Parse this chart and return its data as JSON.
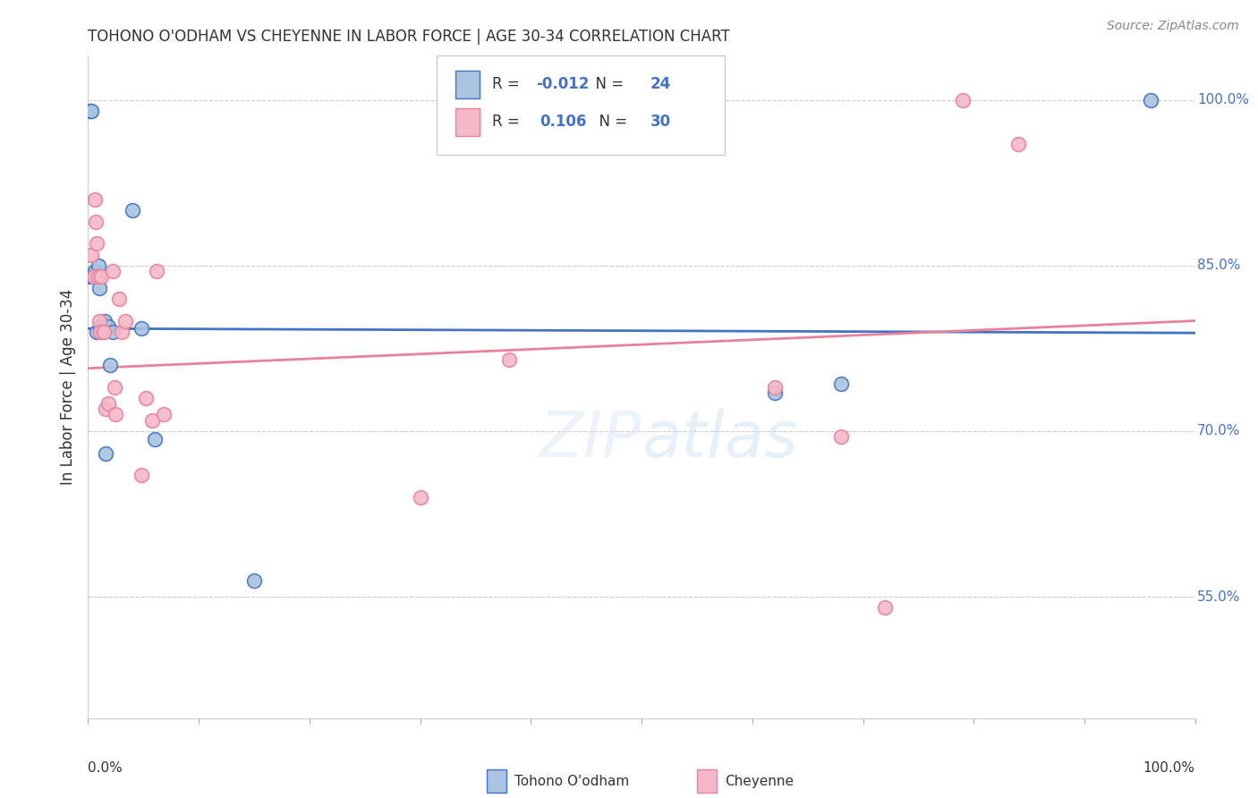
{
  "title": "TOHONO O'ODHAM VS CHEYENNE IN LABOR FORCE | AGE 30-34 CORRELATION CHART",
  "source": "Source: ZipAtlas.com",
  "ylabel": "In Labor Force | Age 30-34",
  "ylabel_right_ticks": [
    "55.0%",
    "70.0%",
    "85.0%",
    "100.0%"
  ],
  "ylabel_right_values": [
    0.55,
    0.7,
    0.85,
    1.0
  ],
  "background_color": "#ffffff",
  "grid_color": "#cccccc",
  "tohono_color": "#a8c4e0",
  "cheyenne_color": "#f5b8c8",
  "tohono_line_color": "#4472c4",
  "cheyenne_line_color": "#e8829a",
  "legend_R_tohono": "-0.012",
  "legend_N_tohono": "24",
  "legend_R_cheyenne": "0.106",
  "legend_N_cheyenne": "30",
  "tohono_x": [
    0.001,
    0.002,
    0.003,
    0.004,
    0.006,
    0.007,
    0.008,
    0.009,
    0.009,
    0.01,
    0.011,
    0.013,
    0.015,
    0.016,
    0.018,
    0.02,
    0.022,
    0.04,
    0.048,
    0.06,
    0.15,
    0.62,
    0.68,
    0.96
  ],
  "tohono_y": [
    0.84,
    0.99,
    0.99,
    0.84,
    0.845,
    0.84,
    0.79,
    0.85,
    0.84,
    0.83,
    0.795,
    0.79,
    0.8,
    0.68,
    0.795,
    0.76,
    0.79,
    0.9,
    0.793,
    0.693,
    0.565,
    0.735,
    0.743,
    1.0
  ],
  "cheyenne_x": [
    0.003,
    0.005,
    0.006,
    0.007,
    0.008,
    0.009,
    0.01,
    0.011,
    0.012,
    0.014,
    0.016,
    0.018,
    0.022,
    0.024,
    0.025,
    0.028,
    0.03,
    0.034,
    0.048,
    0.052,
    0.058,
    0.062,
    0.068,
    0.3,
    0.38,
    0.62,
    0.68,
    0.72,
    0.79,
    0.84
  ],
  "cheyenne_y": [
    0.86,
    0.84,
    0.91,
    0.89,
    0.87,
    0.84,
    0.8,
    0.79,
    0.84,
    0.79,
    0.72,
    0.725,
    0.845,
    0.74,
    0.715,
    0.82,
    0.79,
    0.8,
    0.66,
    0.73,
    0.71,
    0.845,
    0.715,
    0.64,
    0.765,
    0.74,
    0.695,
    0.54,
    1.0,
    0.96
  ],
  "tohono_trend_y0": 0.793,
  "tohono_trend_y1": 0.789,
  "cheyenne_trend_y0": 0.757,
  "cheyenne_trend_y1": 0.8,
  "ymin": 0.44,
  "ymax": 1.04,
  "xmin": 0.0,
  "xmax": 1.0,
  "marker_size": 130
}
